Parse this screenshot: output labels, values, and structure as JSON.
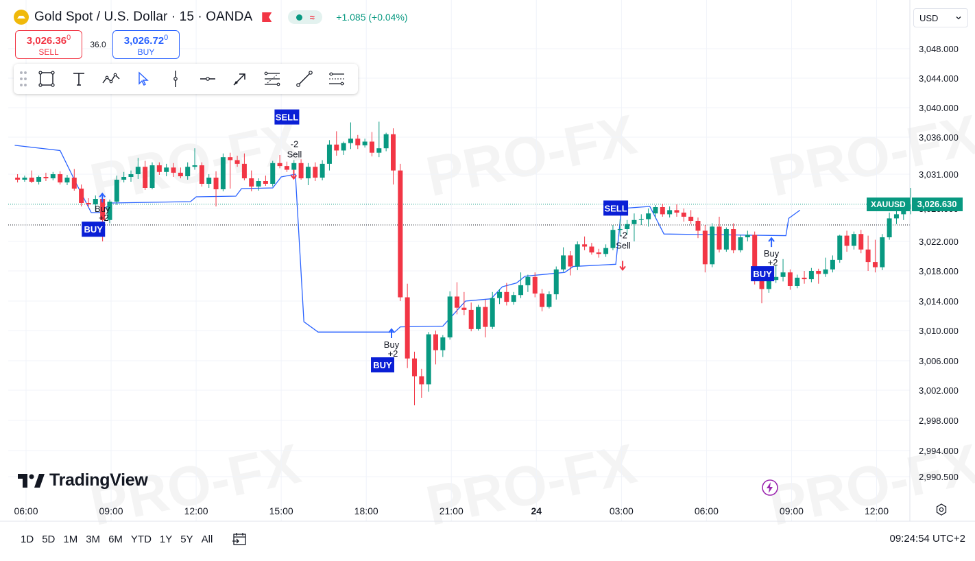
{
  "header": {
    "symbol_title": "Gold Spot / U.S. Dollar · 15 · OANDA",
    "change": "+1.085 (+0.04%)",
    "currency": "USD"
  },
  "order": {
    "sell_price_main": "3,026.36",
    "sell_price_small": "0",
    "sell_label": "SELL",
    "spread": "36.0",
    "buy_price_main": "3,026.72",
    "buy_price_small": "0",
    "buy_label": "BUY"
  },
  "icons": {
    "drawing_tools": [
      "drag-handle-icon",
      "rectangle-icon",
      "text-icon",
      "pattern-icon",
      "cursor-icon",
      "vertical-line-icon",
      "horizontal-ray-icon",
      "arrow-icon",
      "fib-icon",
      "trend-line-icon",
      "channel-icon"
    ]
  },
  "price_tag": {
    "symbol": "XAUUSD",
    "value": "3,026.630"
  },
  "bottom": {
    "ranges": [
      "1D",
      "5D",
      "1M",
      "3M",
      "6M",
      "YTD",
      "1Y",
      "5Y",
      "All"
    ],
    "clock": "09:24:54 UTC+2"
  },
  "branding": {
    "logo_text": "TradingView",
    "watermark": "PRO-FX"
  },
  "colors": {
    "up": "#089981",
    "down": "#f23645",
    "signal_blue": "#0a1fd6",
    "trail_line": "#2962ff"
  },
  "chart_data": {
    "type": "candlestick",
    "title": "Gold Spot / U.S. Dollar · 15 · OANDA",
    "x_ticks": [
      {
        "label": "06:00",
        "hour": 6
      },
      {
        "label": "09:00",
        "hour": 9
      },
      {
        "label": "12:00",
        "hour": 12
      },
      {
        "label": "15:00",
        "hour": 15
      },
      {
        "label": "18:00",
        "hour": 18
      },
      {
        "label": "21:00",
        "hour": 21
      },
      {
        "label": "24",
        "hour": 24
      },
      {
        "label": "03:00",
        "hour": 27
      },
      {
        "label": "06:00",
        "hour": 30
      },
      {
        "label": "09:00",
        "hour": 33
      },
      {
        "label": "12:00",
        "hour": 36
      }
    ],
    "y_ticks": [
      "3,048.000",
      "3,044.000",
      "3,040.000",
      "3,036.000",
      "3,031.000",
      "3,026.000",
      "3,022.000",
      "3,018.000",
      "3,014.000",
      "3,010.000",
      "3,006.000",
      "3,002.000",
      "2,998.000",
      "2,994.000",
      "2,990.500"
    ],
    "y_tick_values": [
      3048,
      3044,
      3040,
      3036,
      3031,
      3026,
      3022,
      3018,
      3014,
      3010,
      3006,
      3002,
      2998,
      2994,
      2990.5
    ],
    "ylim": [
      2989,
      3052
    ],
    "candle_hours_start": 5.7,
    "candle_hours_step": 0.25,
    "candles": [
      [
        3030.5,
        3031.0,
        3029.8,
        3030.2
      ],
      [
        3030.2,
        3030.8,
        3029.9,
        3030.5
      ],
      [
        3030.5,
        3031.5,
        3029.7,
        3029.9
      ],
      [
        3029.9,
        3030.8,
        3029.5,
        3030.6
      ],
      [
        3030.6,
        3031.2,
        3030.0,
        3030.4
      ],
      [
        3030.4,
        3031.3,
        3030.1,
        3031.0
      ],
      [
        3031.0,
        3031.4,
        3029.5,
        3029.8
      ],
      [
        3029.8,
        3030.9,
        3029.4,
        3030.5
      ],
      [
        3030.5,
        3031.7,
        3028.6,
        3028.9
      ],
      [
        3028.9,
        3029.5,
        3026.3,
        3026.8
      ],
      [
        3026.8,
        3027.5,
        3026.2,
        3026.6
      ],
      [
        3026.6,
        3027.9,
        3025.7,
        3027.4
      ],
      [
        3027.4,
        3027.8,
        3022.0,
        3024.6
      ],
      [
        3024.6,
        3027.3,
        3024.2,
        3027.0
      ],
      [
        3027.0,
        3030.8,
        3026.5,
        3030.2
      ],
      [
        3030.2,
        3031.3,
        3029.8,
        3030.6
      ],
      [
        3030.6,
        3031.5,
        3029.9,
        3031.0
      ],
      [
        3031.0,
        3033.2,
        3030.3,
        3032.0
      ],
      [
        3032.0,
        3032.8,
        3028.7,
        3029.0
      ],
      [
        3029.0,
        3032.6,
        3028.8,
        3032.2
      ],
      [
        3032.2,
        3032.6,
        3030.9,
        3031.3
      ],
      [
        3031.3,
        3032.4,
        3030.7,
        3031.9
      ],
      [
        3031.9,
        3032.5,
        3030.6,
        3031.2
      ],
      [
        3031.2,
        3031.9,
        3030.4,
        3030.7
      ],
      [
        3030.7,
        3032.6,
        3030.2,
        3032.0
      ],
      [
        3032.0,
        3034.5,
        3031.6,
        3032.2
      ],
      [
        3032.2,
        3032.6,
        3029.2,
        3029.6
      ],
      [
        3029.6,
        3031.0,
        3029.0,
        3030.5
      ],
      [
        3030.5,
        3031.4,
        3026.3,
        3028.8
      ],
      [
        3028.8,
        3033.8,
        3028.5,
        3033.3
      ],
      [
        3033.3,
        3033.9,
        3028.9,
        3032.9
      ],
      [
        3032.9,
        3033.5,
        3032.0,
        3032.4
      ],
      [
        3032.4,
        3033.8,
        3030.1,
        3030.4
      ],
      [
        3030.4,
        3031.5,
        3028.5,
        3029.2
      ],
      [
        3029.2,
        3030.4,
        3028.6,
        3030.0
      ],
      [
        3030.0,
        3030.8,
        3029.3,
        3029.6
      ],
      [
        3029.6,
        3032.8,
        3029.2,
        3032.5
      ],
      [
        3032.5,
        3033.6,
        3031.8,
        3032.1
      ],
      [
        3032.1,
        3032.7,
        3031.3,
        3031.6
      ],
      [
        3031.6,
        3032.9,
        3031.0,
        3032.5
      ],
      [
        3032.5,
        3033.0,
        3030.2,
        3030.4
      ],
      [
        3030.4,
        3032.5,
        3029.4,
        3032.0
      ],
      [
        3032.0,
        3032.6,
        3030.0,
        3030.5
      ],
      [
        3030.5,
        3032.9,
        3030.1,
        3032.4
      ],
      [
        3032.4,
        3035.6,
        3031.5,
        3035.0
      ],
      [
        3035.0,
        3036.8,
        3033.5,
        3034.2
      ],
      [
        3034.2,
        3035.4,
        3033.6,
        3035.2
      ],
      [
        3035.2,
        3038.0,
        3034.4,
        3035.8
      ],
      [
        3035.8,
        3036.3,
        3034.4,
        3034.9
      ],
      [
        3034.9,
        3035.8,
        3034.6,
        3035.4
      ],
      [
        3035.4,
        3036.7,
        3033.4,
        3033.9
      ],
      [
        3033.9,
        3038.1,
        3033.3,
        3034.5
      ],
      [
        3034.5,
        3036.6,
        3034.1,
        3036.4
      ],
      [
        3036.4,
        3037.2,
        3029.5,
        3031.5
      ],
      [
        3031.5,
        3032.4,
        3014.0,
        3014.5
      ],
      [
        3014.5,
        3016.3,
        3005.0,
        3006.3
      ],
      [
        3006.3,
        3007.2,
        3000.0,
        3003.9
      ],
      [
        3003.9,
        3004.9,
        3001.0,
        3002.8
      ],
      [
        3002.8,
        3009.8,
        3001.8,
        3009.5
      ],
      [
        3009.5,
        3010.0,
        3005.5,
        3007.4
      ],
      [
        3007.4,
        3009.4,
        3006.5,
        3009.1
      ],
      [
        3009.1,
        3015.3,
        3008.8,
        3014.6
      ],
      [
        3014.6,
        3016.5,
        3012.2,
        3013.1
      ],
      [
        3013.1,
        3015.2,
        3012.1,
        3012.8
      ],
      [
        3012.8,
        3013.8,
        3009.9,
        3010.2
      ],
      [
        3010.2,
        3013.5,
        3010.0,
        3013.2
      ],
      [
        3013.2,
        3014.2,
        3009.1,
        3010.5
      ],
      [
        3010.5,
        3015.2,
        3010.2,
        3014.4
      ],
      [
        3014.4,
        3015.6,
        3013.6,
        3015.2
      ],
      [
        3015.2,
        3016.4,
        3013.4,
        3013.9
      ],
      [
        3013.9,
        3015.2,
        3013.5,
        3014.8
      ],
      [
        3014.8,
        3017.8,
        3014.4,
        3016.1
      ],
      [
        3016.1,
        3017.5,
        3015.2,
        3017.2
      ],
      [
        3017.2,
        3017.8,
        3014.5,
        3015.0
      ],
      [
        3015.0,
        3015.6,
        3012.6,
        3013.2
      ],
      [
        3013.2,
        3015.3,
        3013.0,
        3014.9
      ],
      [
        3014.9,
        3018.6,
        3014.2,
        3018.2
      ],
      [
        3018.2,
        3021.2,
        3017.9,
        3020.1
      ],
      [
        3020.1,
        3020.7,
        3017.4,
        3018.6
      ],
      [
        3018.6,
        3022.0,
        3018.1,
        3021.6
      ],
      [
        3021.6,
        3022.6,
        3020.8,
        3021.3
      ],
      [
        3021.3,
        3021.8,
        3020.2,
        3020.5
      ],
      [
        3020.5,
        3021.0,
        3019.8,
        3020.3
      ],
      [
        3020.3,
        3021.6,
        3019.9,
        3021.1
      ],
      [
        3021.1,
        3024.0,
        3020.8,
        3023.4
      ],
      [
        3023.4,
        3024.7,
        3022.7,
        3023.5
      ],
      [
        3023.5,
        3024.6,
        3022.8,
        3024.1
      ],
      [
        3024.1,
        3025.4,
        3022.0,
        3024.6
      ],
      [
        3024.6,
        3025.3,
        3024.0,
        3024.7
      ],
      [
        3024.7,
        3026.0,
        3023.8,
        3025.4
      ],
      [
        3025.4,
        3026.5,
        3024.8,
        3026.2
      ],
      [
        3026.2,
        3026.7,
        3025.0,
        3025.3
      ],
      [
        3025.3,
        3026.3,
        3024.9,
        3025.8
      ],
      [
        3025.8,
        3026.6,
        3025.0,
        3025.5
      ],
      [
        3025.5,
        3026.0,
        3024.4,
        3025.0
      ],
      [
        3025.0,
        3025.8,
        3024.1,
        3024.5
      ],
      [
        3024.5,
        3024.9,
        3022.4,
        3023.3
      ],
      [
        3023.3,
        3024.0,
        3017.8,
        3018.9
      ],
      [
        3018.9,
        3024.2,
        3018.5,
        3023.8
      ],
      [
        3023.8,
        3025.0,
        3020.5,
        3020.9
      ],
      [
        3020.9,
        3023.7,
        3020.6,
        3023.5
      ],
      [
        3023.5,
        3024.2,
        3020.4,
        3020.8
      ],
      [
        3020.8,
        3022.8,
        3020.5,
        3022.5
      ],
      [
        3022.5,
        3023.3,
        3022.0,
        3022.8
      ],
      [
        3022.8,
        3023.2,
        3016.2,
        3016.8
      ],
      [
        3016.8,
        3017.6,
        3013.7,
        3015.6
      ],
      [
        3015.6,
        3017.3,
        3015.1,
        3016.8
      ],
      [
        3016.8,
        3018.8,
        3016.4,
        3017.2
      ],
      [
        3017.2,
        3019.6,
        3016.6,
        3017.8
      ],
      [
        3017.8,
        3018.2,
        3015.5,
        3016.0
      ],
      [
        3016.0,
        3017.5,
        3015.7,
        3017.1
      ],
      [
        3017.1,
        3018.0,
        3016.3,
        3016.9
      ],
      [
        3016.9,
        3018.4,
        3016.5,
        3018.0
      ],
      [
        3018.0,
        3018.3,
        3016.3,
        3017.6
      ],
      [
        3017.6,
        3019.8,
        3017.2,
        3018.2
      ],
      [
        3018.2,
        3020.1,
        3017.8,
        3019.5
      ],
      [
        3019.5,
        3022.8,
        3019.1,
        3022.7
      ],
      [
        3022.7,
        3023.3,
        3020.6,
        3021.4
      ],
      [
        3021.4,
        3023.2,
        3020.9,
        3022.9
      ],
      [
        3022.9,
        3023.4,
        3020.4,
        3020.9
      ],
      [
        3020.9,
        3022.7,
        3018.0,
        3019.2
      ],
      [
        3019.2,
        3022.2,
        3017.8,
        3018.5
      ],
      [
        3018.5,
        3022.9,
        3018.1,
        3022.5
      ],
      [
        3022.5,
        3025.5,
        3022.2,
        3024.8
      ],
      [
        3024.8,
        3026.0,
        3024.1,
        3025.3
      ],
      [
        3025.3,
        3026.4,
        3024.6,
        3025.9
      ],
      [
        3025.9,
        3029.0,
        3025.3,
        3026.6
      ]
    ],
    "trail_line": [
      [
        5.6,
        3034.9
      ],
      [
        7.2,
        3034.2
      ],
      [
        7.8,
        3029.4
      ],
      [
        8.3,
        3025.5
      ],
      [
        8.6,
        3025.5
      ],
      [
        9.0,
        3026.8
      ],
      [
        11.8,
        3027.0
      ],
      [
        12.0,
        3027.7
      ],
      [
        13.4,
        3027.8
      ],
      [
        13.6,
        3028.9
      ],
      [
        14.7,
        3029.0
      ],
      [
        15.0,
        3030.6
      ],
      [
        15.5,
        3031.0
      ],
      [
        15.8,
        3011.2
      ],
      [
        16.3,
        3009.8
      ],
      [
        19.0,
        3009.8
      ],
      [
        19.2,
        3010.5
      ],
      [
        20.7,
        3010.6
      ],
      [
        21.5,
        3014.0
      ],
      [
        22.4,
        3014.3
      ],
      [
        22.8,
        3015.9
      ],
      [
        23.3,
        3016.4
      ],
      [
        23.6,
        3017.3
      ],
      [
        25.0,
        3017.8
      ],
      [
        25.3,
        3018.6
      ],
      [
        26.8,
        3018.9
      ],
      [
        27.0,
        3026.0
      ],
      [
        28.0,
        3026.3
      ],
      [
        28.5,
        3022.9
      ],
      [
        32.8,
        3022.7
      ],
      [
        32.9,
        3024.8
      ],
      [
        33.3,
        3025.8
      ]
    ],
    "signals": [
      {
        "hour": 8.4,
        "price": 3024.9,
        "type": "buy",
        "box_text": "BUY",
        "label": "Buy",
        "sublabel": "+2"
      },
      {
        "hour": 15.2,
        "price": 3037.9,
        "type": "sell",
        "box_text": "SELL",
        "label": "Sell",
        "sublabel": "-2"
      },
      {
        "hour": 18.6,
        "price": 3007.0,
        "type": "buy",
        "box_text": "BUY",
        "label": "Buy",
        "sublabel": "+2"
      },
      {
        "hour": 26.8,
        "price": 3025.3,
        "type": "sell",
        "box_text": "SELL",
        "label": "Sell",
        "sublabel": "-2"
      },
      {
        "hour": 32.0,
        "price": 3019.2,
        "type": "buy",
        "box_text": "BUY",
        "label": "Buy",
        "sublabel": "+2"
      }
    ],
    "last_price": 3026.63,
    "bid_line": 3024.0
  }
}
